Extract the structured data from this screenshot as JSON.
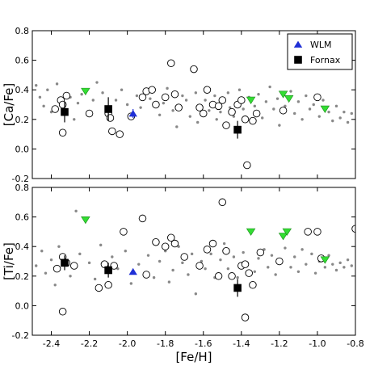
{
  "chart_data": [
    {
      "type": "scatter",
      "title": "",
      "xlabel": "",
      "ylabel": "[Ca/Fe]",
      "xlim": [
        -2.5,
        -0.8
      ],
      "ylim": [
        -0.2,
        0.8
      ],
      "yticks": [
        "-0.2",
        "0.0",
        "0.2",
        "0.4",
        "0.6",
        "0.8"
      ],
      "legend": {
        "placement": "top-right",
        "entries": [
          "WLM",
          "Fornax"
        ]
      },
      "series": [
        {
          "name": "WLM",
          "marker": "triangle-up",
          "color": "#1f2fd6",
          "points": [
            [
              -1.97,
              0.24
            ]
          ],
          "yerr": [
            0.03
          ]
        },
        {
          "name": "Fornax",
          "marker": "square",
          "color": "#000000",
          "points": [
            [
              -2.33,
              0.25
            ],
            [
              -2.1,
              0.27
            ],
            [
              -1.42,
              0.13
            ]
          ],
          "yerr": [
            0.07,
            0.08,
            0.06
          ]
        },
        {
          "marker": "triangle-down",
          "color": "#33dd33",
          "points": [
            [
              -2.22,
              0.39
            ],
            [
              -1.35,
              0.33
            ],
            [
              -1.18,
              0.37
            ],
            [
              -1.15,
              0.34
            ],
            [
              -0.96,
              0.27
            ]
          ]
        },
        {
          "marker": "open-circle",
          "color": "#000000",
          "points": [
            [
              -2.38,
              0.27
            ],
            [
              -2.35,
              0.33
            ],
            [
              -2.34,
              0.3
            ],
            [
              -2.32,
              0.36
            ],
            [
              -2.34,
              0.11
            ],
            [
              -2.2,
              0.24
            ],
            [
              -2.1,
              0.24
            ],
            [
              -2.09,
              0.21
            ],
            [
              -2.08,
              0.12
            ],
            [
              -2.04,
              0.1
            ],
            [
              -1.98,
              0.22
            ],
            [
              -1.92,
              0.35
            ],
            [
              -1.9,
              0.39
            ],
            [
              -1.87,
              0.4
            ],
            [
              -1.85,
              0.3
            ],
            [
              -1.8,
              0.35
            ],
            [
              -1.77,
              0.58
            ],
            [
              -1.75,
              0.37
            ],
            [
              -1.73,
              0.28
            ],
            [
              -1.65,
              0.54
            ],
            [
              -1.62,
              0.28
            ],
            [
              -1.6,
              0.24
            ],
            [
              -1.58,
              0.4
            ],
            [
              -1.55,
              0.3
            ],
            [
              -1.52,
              0.29
            ],
            [
              -1.5,
              0.33
            ],
            [
              -1.48,
              0.16
            ],
            [
              -1.45,
              0.25
            ],
            [
              -1.42,
              0.3
            ],
            [
              -1.4,
              0.33
            ],
            [
              -1.38,
              0.2
            ],
            [
              -1.37,
              -0.11
            ],
            [
              -1.34,
              0.19
            ],
            [
              -1.32,
              0.24
            ],
            [
              -1.18,
              0.26
            ],
            [
              -1.0,
              0.35
            ]
          ]
        },
        {
          "marker": "dot",
          "color": "#888888",
          "points": [
            [
              -2.48,
              0.43
            ],
            [
              -2.46,
              0.35
            ],
            [
              -2.44,
              0.29
            ],
            [
              -2.42,
              0.4
            ],
            [
              -2.4,
              0.25
            ],
            [
              -2.37,
              0.44
            ],
            [
              -2.3,
              0.35
            ],
            [
              -2.28,
              0.2
            ],
            [
              -2.26,
              0.31
            ],
            [
              -2.24,
              0.37
            ],
            [
              -2.18,
              0.33
            ],
            [
              -2.16,
              0.45
            ],
            [
              -2.13,
              0.38
            ],
            [
              -2.06,
              0.33
            ],
            [
              -2.03,
              0.4
            ],
            [
              -2.0,
              0.3
            ],
            [
              -1.95,
              0.36
            ],
            [
              -1.93,
              0.28
            ],
            [
              -1.88,
              0.34
            ],
            [
              -1.83,
              0.23
            ],
            [
              -1.81,
              0.31
            ],
            [
              -1.79,
              0.41
            ],
            [
              -1.76,
              0.26
            ],
            [
              -1.74,
              0.15
            ],
            [
              -1.71,
              0.36
            ],
            [
              -1.69,
              0.33
            ],
            [
              -1.67,
              0.22
            ],
            [
              -1.64,
              0.38
            ],
            [
              -1.63,
              0.18
            ],
            [
              -1.59,
              0.33
            ],
            [
              -1.57,
              0.26
            ],
            [
              -1.54,
              0.36
            ],
            [
              -1.53,
              0.2
            ],
            [
              -1.51,
              0.25
            ],
            [
              -1.47,
              0.38
            ],
            [
              -1.46,
              0.28
            ],
            [
              -1.44,
              0.22
            ],
            [
              -1.41,
              0.4
            ],
            [
              -1.39,
              0.27
            ],
            [
              -1.36,
              0.35
            ],
            [
              -1.33,
              0.29
            ],
            [
              -1.31,
              0.37
            ],
            [
              -1.29,
              0.21
            ],
            [
              -1.27,
              0.32
            ],
            [
              -1.25,
              0.42
            ],
            [
              -1.23,
              0.27
            ],
            [
              -1.21,
              0.34
            ],
            [
              -1.2,
              0.16
            ],
            [
              -1.17,
              0.29
            ],
            [
              -1.14,
              0.39
            ],
            [
              -1.12,
              0.24
            ],
            [
              -1.1,
              0.32
            ],
            [
              -1.08,
              0.2
            ],
            [
              -1.06,
              0.36
            ],
            [
              -1.04,
              0.27
            ],
            [
              -1.02,
              0.3
            ],
            [
              -0.99,
              0.22
            ],
            [
              -0.97,
              0.33
            ],
            [
              -0.94,
              0.25
            ],
            [
              -0.92,
              0.19
            ],
            [
              -0.9,
              0.29
            ],
            [
              -0.88,
              0.21
            ],
            [
              -0.86,
              0.25
            ],
            [
              -0.84,
              0.18
            ],
            [
              -0.82,
              0.24
            ]
          ]
        }
      ]
    },
    {
      "type": "scatter",
      "title": "",
      "xlabel": "[Fe/H]",
      "ylabel": "[Ti/Fe]",
      "xlim": [
        -2.5,
        -0.8
      ],
      "ylim": [
        -0.2,
        0.8
      ],
      "xticks": [
        "-2.4",
        "-2.2",
        "-2.0",
        "-1.8",
        "-1.6",
        "-1.4",
        "-1.2",
        "-1.0",
        "-0.8"
      ],
      "yticks": [
        "-0.2",
        "0.0",
        "0.2",
        "0.4",
        "0.6",
        "0.8"
      ],
      "series": [
        {
          "name": "WLM",
          "marker": "triangle-up",
          "color": "#1f2fd6",
          "points": [
            [
              -1.97,
              0.23
            ]
          ],
          "yerr": [
            0.02
          ]
        },
        {
          "name": "Fornax",
          "marker": "square",
          "color": "#000000",
          "points": [
            [
              -2.33,
              0.29
            ],
            [
              -2.1,
              0.24
            ],
            [
              -1.42,
              0.12
            ]
          ],
          "yerr": [
            0.05,
            0.05,
            0.06
          ]
        },
        {
          "marker": "triangle-down",
          "color": "#33dd33",
          "points": [
            [
              -2.22,
              0.58
            ],
            [
              -1.35,
              0.5
            ],
            [
              -1.18,
              0.47
            ],
            [
              -1.16,
              0.5
            ],
            [
              -0.96,
              0.31
            ]
          ]
        },
        {
          "marker": "open-circle",
          "color": "#000000",
          "points": [
            [
              -2.37,
              0.25
            ],
            [
              -2.34,
              0.33
            ],
            [
              -2.32,
              0.29
            ],
            [
              -2.34,
              -0.04
            ],
            [
              -2.28,
              0.27
            ],
            [
              -2.15,
              0.12
            ],
            [
              -2.12,
              0.28
            ],
            [
              -2.1,
              0.14
            ],
            [
              -2.07,
              0.27
            ],
            [
              -2.02,
              0.5
            ],
            [
              -1.92,
              0.59
            ],
            [
              -1.9,
              0.21
            ],
            [
              -1.85,
              0.43
            ],
            [
              -1.8,
              0.4
            ],
            [
              -1.77,
              0.46
            ],
            [
              -1.75,
              0.42
            ],
            [
              -1.7,
              0.33
            ],
            [
              -1.62,
              0.27
            ],
            [
              -1.58,
              0.38
            ],
            [
              -1.55,
              0.42
            ],
            [
              -1.52,
              0.2
            ],
            [
              -1.5,
              0.7
            ],
            [
              -1.48,
              0.37
            ],
            [
              -1.45,
              0.2
            ],
            [
              -1.4,
              0.27
            ],
            [
              -1.38,
              0.28
            ],
            [
              -1.36,
              0.22
            ],
            [
              -1.34,
              0.14
            ],
            [
              -1.38,
              -0.08
            ],
            [
              -1.3,
              0.36
            ],
            [
              -1.2,
              0.3
            ],
            [
              -1.05,
              0.5
            ],
            [
              -1.0,
              0.5
            ],
            [
              -0.98,
              0.32
            ],
            [
              -0.8,
              0.52
            ]
          ]
        },
        {
          "marker": "dot",
          "color": "#888888",
          "points": [
            [
              -2.48,
              0.27
            ],
            [
              -2.45,
              0.37
            ],
            [
              -2.43,
              0.22
            ],
            [
              -2.4,
              0.31
            ],
            [
              -2.38,
              0.14
            ],
            [
              -2.36,
              0.4
            ],
            [
              -2.3,
              0.2
            ],
            [
              -2.27,
              0.64
            ],
            [
              -2.25,
              0.35
            ],
            [
              -2.2,
              0.29
            ],
            [
              -2.17,
              0.18
            ],
            [
              -2.14,
              0.41
            ],
            [
              -2.08,
              0.33
            ],
            [
              -2.05,
              0.25
            ],
            [
              -2.01,
              0.37
            ],
            [
              -1.98,
              0.15
            ],
            [
              -1.94,
              0.28
            ],
            [
              -1.89,
              0.34
            ],
            [
              -1.86,
              0.19
            ],
            [
              -1.83,
              0.3
            ],
            [
              -1.8,
              0.37
            ],
            [
              -1.78,
              0.16
            ],
            [
              -1.76,
              0.24
            ],
            [
              -1.73,
              0.4
            ],
            [
              -1.71,
              0.29
            ],
            [
              -1.68,
              0.21
            ],
            [
              -1.66,
              0.35
            ],
            [
              -1.64,
              0.08
            ],
            [
              -1.61,
              0.3
            ],
            [
              -1.59,
              0.25
            ],
            [
              -1.56,
              0.35
            ],
            [
              -1.54,
              0.19
            ],
            [
              -1.51,
              0.31
            ],
            [
              -1.49,
              0.42
            ],
            [
              -1.47,
              0.25
            ],
            [
              -1.44,
              0.33
            ],
            [
              -1.42,
              0.19
            ],
            [
              -1.39,
              0.36
            ],
            [
              -1.37,
              0.29
            ],
            [
              -1.33,
              0.23
            ],
            [
              -1.31,
              0.32
            ],
            [
              -1.28,
              0.38
            ],
            [
              -1.26,
              0.26
            ],
            [
              -1.24,
              0.34
            ],
            [
              -1.22,
              0.21
            ],
            [
              -1.19,
              0.29
            ],
            [
              -1.17,
              0.39
            ],
            [
              -1.14,
              0.26
            ],
            [
              -1.12,
              0.33
            ],
            [
              -1.1,
              0.23
            ],
            [
              -1.08,
              0.38
            ],
            [
              -1.06,
              0.28
            ],
            [
              -1.03,
              0.35
            ],
            [
              -1.01,
              0.22
            ],
            [
              -0.99,
              0.3
            ],
            [
              -0.96,
              0.26
            ],
            [
              -0.94,
              0.34
            ],
            [
              -0.92,
              0.28
            ],
            [
              -0.9,
              0.24
            ],
            [
              -0.88,
              0.29
            ],
            [
              -0.86,
              0.26
            ],
            [
              -0.84,
              0.31
            ],
            [
              -0.82,
              0.27
            ]
          ]
        }
      ]
    }
  ]
}
